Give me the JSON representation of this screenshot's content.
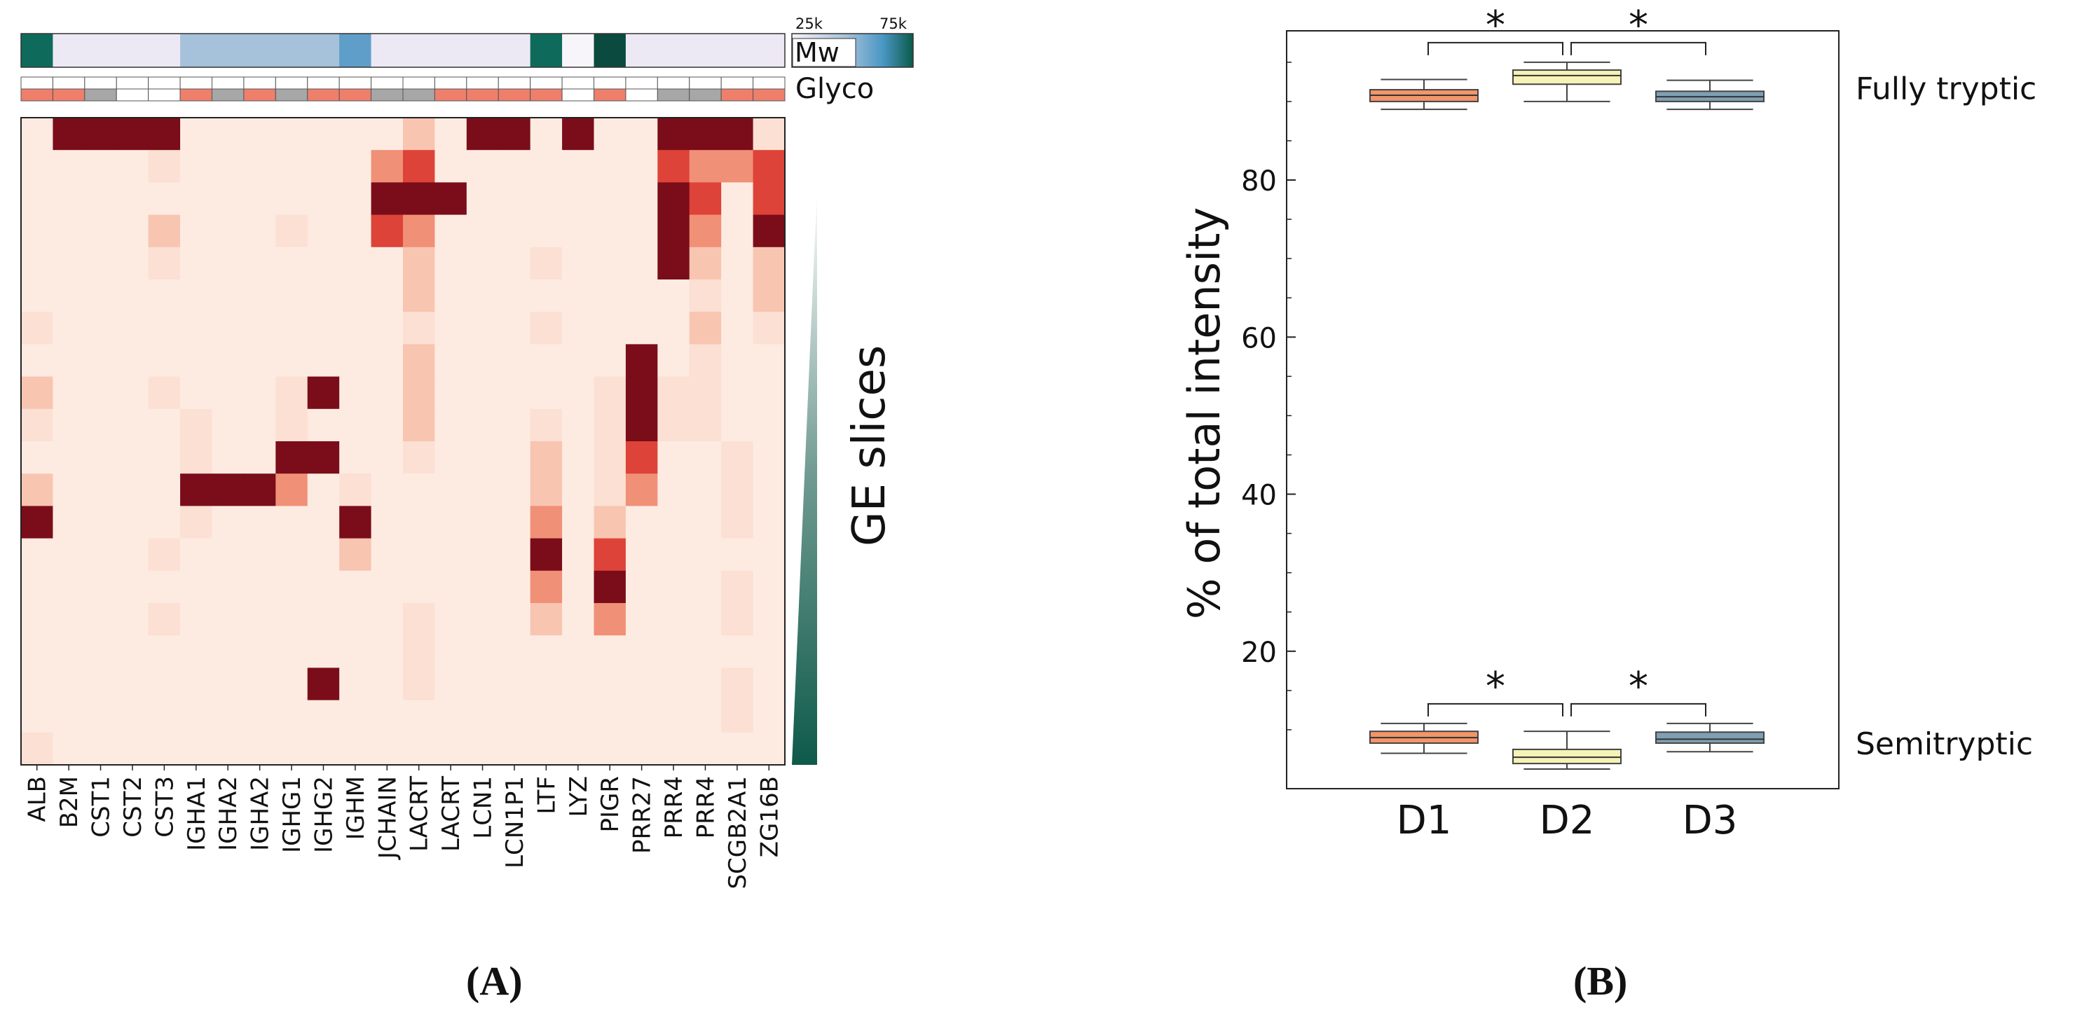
{
  "colors": {
    "heat_zero": "#fdebe2",
    "heat_very_low": "#fbe0d3",
    "heat_low": "#f8c5b1",
    "heat_mid": "#f09077",
    "heat_high": "#dd4338",
    "heat_max": "#7a0d19",
    "mw_light": "#ede9f4",
    "mw_blue_light": "#a6c1da",
    "mw_blue": "#5f9ec9",
    "mw_teal": "#0e6b5c",
    "mw_dark": "#0b4a3f",
    "glyco_present": "#ee7f6b",
    "glyco_gray": "#a7a7a7",
    "glyco_white": "#ffffff",
    "d1": "#f2956a",
    "d2": "#f6f2b8",
    "d3": "#7f9fb3"
  },
  "panel_a": {
    "label": "(A)",
    "colorbar_label": "Mw",
    "colorbar_ticks": [
      "25k",
      "75k"
    ],
    "glyco_label": "Glyco",
    "slices_label": "GE slices",
    "triangle_label": "Mw",
    "proteins": [
      "ALB",
      "B2M",
      "CST1",
      "CST2",
      "CST3",
      "IGHA1",
      "IGHA2",
      "IGHA2",
      "IGHG1",
      "IGHG2",
      "IGHM",
      "JCHAIN",
      "LACRT",
      "LACRT",
      "LCN1",
      "LCN1P1",
      "LTF",
      "LYZ",
      "PIGR",
      "PRR27",
      "PRR4",
      "PRR4",
      "SCGB2A1",
      "ZG16B"
    ],
    "mw_row": [
      "teal",
      "light",
      "light",
      "light",
      "light",
      "blue_light",
      "blue_light",
      "blue_light",
      "blue_light",
      "blue_light",
      "blue",
      "light",
      "light",
      "light",
      "light",
      "light",
      "teal",
      "white",
      "dark",
      "light",
      "light",
      "light",
      "light",
      "light"
    ],
    "glyco_rows": [
      [
        "white",
        "white",
        "white",
        "white",
        "white",
        "white",
        "white",
        "white",
        "white",
        "white",
        "white",
        "white",
        "white",
        "white",
        "white",
        "white",
        "white",
        "white",
        "white",
        "white",
        "white",
        "white",
        "white",
        "white"
      ],
      [
        "present",
        "present",
        "gray",
        "white",
        "white",
        "present",
        "gray",
        "present",
        "gray",
        "present",
        "present",
        "gray",
        "gray",
        "present",
        "present",
        "present",
        "present",
        "white",
        "present",
        "white",
        "gray",
        "gray",
        "present",
        "present"
      ]
    ],
    "chart_data": {
      "type": "heatmap",
      "title": "",
      "xlabel": "",
      "ylabel": "GE slices",
      "x_categories": [
        "ALB",
        "B2M",
        "CST1",
        "CST2",
        "CST3",
        "IGHA1",
        "IGHA2",
        "IGHA2",
        "IGHG1",
        "IGHG2",
        "IGHM",
        "JCHAIN",
        "LACRT",
        "LACRT",
        "LCN1",
        "LCN1P1",
        "LTF",
        "LYZ",
        "PIGR",
        "PRR27",
        "PRR4",
        "PRR4",
        "SCGB2A1",
        "ZG16B"
      ],
      "n_slices": 20,
      "scale": "0 = none, 5 = maximum relative intensity",
      "matrix": [
        [
          0,
          5,
          5,
          5,
          5,
          0,
          0,
          0,
          0,
          0,
          0,
          0,
          2,
          0,
          5,
          5,
          0,
          5,
          0,
          0,
          5,
          5,
          5,
          1
        ],
        [
          0,
          0,
          0,
          0,
          1,
          0,
          0,
          0,
          0,
          0,
          0,
          3,
          4,
          0,
          0,
          0,
          0,
          0,
          0,
          0,
          4,
          3,
          3,
          4
        ],
        [
          0,
          0,
          0,
          0,
          0,
          0,
          0,
          0,
          0,
          0,
          0,
          5,
          5,
          5,
          0,
          0,
          0,
          0,
          0,
          0,
          5,
          4,
          0,
          4
        ],
        [
          0,
          0,
          0,
          0,
          2,
          0,
          0,
          0,
          1,
          0,
          0,
          4,
          3,
          0,
          0,
          0,
          0,
          0,
          0,
          0,
          5,
          3,
          0,
          5
        ],
        [
          0,
          0,
          0,
          0,
          1,
          0,
          0,
          0,
          0,
          0,
          0,
          0,
          2,
          0,
          0,
          0,
          1,
          0,
          0,
          0,
          5,
          2,
          0,
          2
        ],
        [
          0,
          0,
          0,
          0,
          0,
          0,
          0,
          0,
          0,
          0,
          0,
          0,
          2,
          0,
          0,
          0,
          0,
          0,
          0,
          0,
          0,
          1,
          0,
          2
        ],
        [
          1,
          0,
          0,
          0,
          0,
          0,
          0,
          0,
          0,
          0,
          0,
          0,
          1,
          0,
          0,
          0,
          1,
          0,
          0,
          0,
          0,
          2,
          0,
          1
        ],
        [
          0,
          0,
          0,
          0,
          0,
          0,
          0,
          0,
          0,
          0,
          0,
          0,
          2,
          0,
          0,
          0,
          0,
          0,
          0,
          5,
          0,
          1,
          0,
          0
        ],
        [
          2,
          0,
          0,
          0,
          1,
          0,
          0,
          0,
          1,
          5,
          0,
          0,
          2,
          0,
          0,
          0,
          0,
          0,
          1,
          5,
          1,
          1,
          0,
          0
        ],
        [
          1,
          0,
          0,
          0,
          0,
          1,
          0,
          0,
          1,
          0,
          0,
          0,
          2,
          0,
          0,
          0,
          1,
          0,
          1,
          5,
          1,
          1,
          0,
          0
        ],
        [
          0,
          0,
          0,
          0,
          0,
          1,
          0,
          0,
          5,
          5,
          0,
          0,
          1,
          0,
          0,
          0,
          2,
          0,
          1,
          4,
          0,
          0,
          1,
          0
        ],
        [
          2,
          0,
          0,
          0,
          0,
          5,
          5,
          5,
          3,
          0,
          1,
          0,
          0,
          0,
          0,
          0,
          2,
          0,
          1,
          3,
          0,
          0,
          1,
          0
        ],
        [
          5,
          0,
          0,
          0,
          0,
          1,
          0,
          0,
          0,
          0,
          5,
          0,
          0,
          0,
          0,
          0,
          3,
          0,
          2,
          0,
          0,
          0,
          1,
          0
        ],
        [
          0,
          0,
          0,
          0,
          1,
          0,
          0,
          0,
          0,
          0,
          2,
          0,
          0,
          0,
          0,
          0,
          5,
          0,
          4,
          0,
          0,
          0,
          0,
          0
        ],
        [
          0,
          0,
          0,
          0,
          0,
          0,
          0,
          0,
          0,
          0,
          0,
          0,
          0,
          0,
          0,
          0,
          3,
          0,
          5,
          0,
          0,
          0,
          1,
          0
        ],
        [
          0,
          0,
          0,
          0,
          1,
          0,
          0,
          0,
          0,
          0,
          0,
          0,
          1,
          0,
          0,
          0,
          2,
          0,
          3,
          0,
          0,
          0,
          1,
          0
        ],
        [
          0,
          0,
          0,
          0,
          0,
          0,
          0,
          0,
          0,
          0,
          0,
          0,
          1,
          0,
          0,
          0,
          0,
          0,
          0,
          0,
          0,
          0,
          0,
          0
        ],
        [
          0,
          0,
          0,
          0,
          0,
          0,
          0,
          0,
          0,
          5,
          0,
          0,
          1,
          0,
          0,
          0,
          0,
          0,
          0,
          0,
          0,
          0,
          1,
          0
        ],
        [
          0,
          0,
          0,
          0,
          0,
          0,
          0,
          0,
          0,
          0,
          0,
          0,
          0,
          0,
          0,
          0,
          0,
          0,
          0,
          0,
          0,
          0,
          1,
          0
        ],
        [
          1,
          0,
          0,
          0,
          0,
          0,
          0,
          0,
          0,
          0,
          0,
          0,
          0,
          0,
          0,
          0,
          0,
          0,
          0,
          0,
          0,
          0,
          0,
          0
        ]
      ]
    }
  },
  "panel_b": {
    "label": "(B)",
    "chart_data": {
      "type": "box",
      "title": "",
      "xlabel": "",
      "ylabel": "% of total intensity",
      "categories": [
        "D1",
        "D2",
        "D3"
      ],
      "yticks": [
        20,
        40,
        60,
        80
      ],
      "ylim": [
        2.5,
        99
      ],
      "group_labels": [
        "Fully tryptic",
        "Semitryptic"
      ],
      "significance_marker": "*",
      "significance_pairs": [
        [
          "D1",
          "D2"
        ],
        [
          "D2",
          "D3"
        ]
      ],
      "series": [
        {
          "name": "Fully tryptic",
          "boxes": [
            {
              "category": "D1",
              "whisker_low": 89.0,
              "q1": 90.0,
              "median": 90.8,
              "q3": 91.5,
              "whisker_high": 92.8
            },
            {
              "category": "D2",
              "whisker_low": 90.0,
              "q1": 92.2,
              "median": 93.3,
              "q3": 94.0,
              "whisker_high": 95.0
            },
            {
              "category": "D3",
              "whisker_low": 89.0,
              "q1": 90.0,
              "median": 90.6,
              "q3": 91.3,
              "whisker_high": 92.7
            }
          ]
        },
        {
          "name": "Semitryptic",
          "boxes": [
            {
              "category": "D1",
              "whisker_low": 7.0,
              "q1": 8.3,
              "median": 9.0,
              "q3": 9.8,
              "whisker_high": 10.8
            },
            {
              "category": "D2",
              "whisker_low": 5.0,
              "q1": 5.7,
              "median": 6.5,
              "q3": 7.5,
              "whisker_high": 9.8
            },
            {
              "category": "D3",
              "whisker_low": 7.2,
              "q1": 8.3,
              "median": 8.8,
              "q3": 9.7,
              "whisker_high": 10.8
            }
          ]
        }
      ]
    }
  }
}
